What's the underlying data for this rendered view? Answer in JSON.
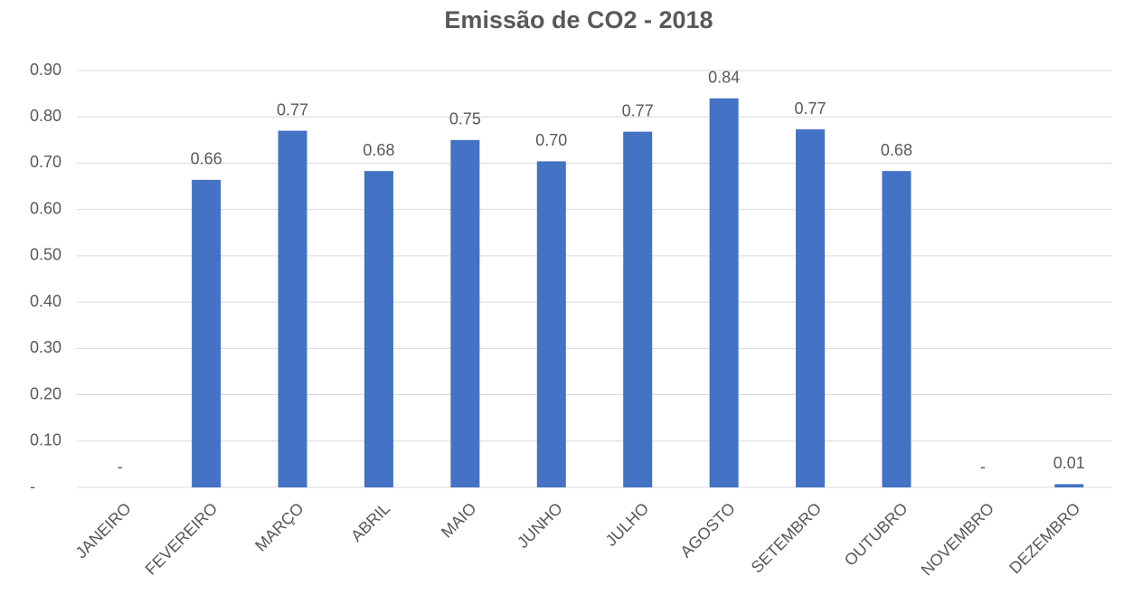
{
  "chart_data": {
    "type": "bar",
    "title": "Emissão de CO2 - 2018",
    "categories": [
      "JANEIRO",
      "FEVEREIRO",
      "MARÇO",
      "ABRIL",
      "MAIO",
      "JUNHO",
      "JULHO",
      "AGOSTO",
      "SETEMBRO",
      "OUTUBRO",
      "NOVEMBRO",
      "DEZEMBRO"
    ],
    "values": [
      0,
      0.664,
      0.77,
      0.683,
      0.75,
      0.704,
      0.768,
      0.84,
      0.773,
      0.683,
      0,
      0.007
    ],
    "value_labels": [
      "-",
      "0.66",
      "0.77",
      "0.68",
      "0.75",
      "0.70",
      "0.77",
      "0.84",
      "0.77",
      "0.68",
      "-",
      "0.01"
    ],
    "color": "#4472c4",
    "ylim": [
      0,
      0.9
    ],
    "yticks": [
      {
        "value": 0,
        "label": "-"
      },
      {
        "value": 0.1,
        "label": "0.10"
      },
      {
        "value": 0.2,
        "label": "0.20"
      },
      {
        "value": 0.3,
        "label": "0.30"
      },
      {
        "value": 0.4,
        "label": "0.40"
      },
      {
        "value": 0.5,
        "label": "0.50"
      },
      {
        "value": 0.6,
        "label": "0.60"
      },
      {
        "value": 0.7,
        "label": "0.70"
      },
      {
        "value": 0.8,
        "label": "0.80"
      },
      {
        "value": 0.9,
        "label": "0.90"
      }
    ],
    "grid": true
  }
}
